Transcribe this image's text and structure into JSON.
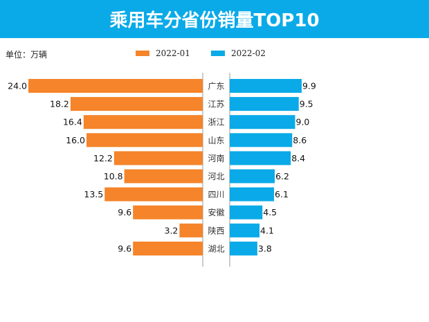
{
  "header": {
    "title": "乘用车分省份销量TOP10"
  },
  "unit_label": "单位：万辆",
  "colors": {
    "header_bg": "#0aaae8",
    "series1": "#f5842a",
    "series2": "#0aaae8",
    "axis": "#999999"
  },
  "chart_data": {
    "type": "bar",
    "orientation": "horizontal-butterfly",
    "title": "乘用车分省份销量TOP10",
    "unit": "单位：万辆",
    "legend_position": "top-center",
    "categories": [
      "广东",
      "江苏",
      "浙江",
      "山东",
      "河南",
      "河北",
      "四川",
      "安徽",
      "陕西",
      "湖北"
    ],
    "series": [
      {
        "name": "2022-01",
        "color": "#f5842a",
        "side": "left",
        "values": [
          24.0,
          18.2,
          16.4,
          16.0,
          12.2,
          10.8,
          13.5,
          9.6,
          3.2,
          9.6
        ],
        "labels": [
          "24.0",
          "18.2",
          "16.4",
          "16.0",
          "12.2",
          "10.8",
          "13.5",
          "9.6",
          "3.2",
          "9.6"
        ]
      },
      {
        "name": "2022-02",
        "color": "#0aaae8",
        "side": "right",
        "values": [
          9.9,
          9.5,
          9.0,
          8.6,
          8.4,
          6.2,
          6.1,
          4.5,
          4.1,
          3.8
        ],
        "labels": [
          "9.9",
          "9.5",
          "9.0",
          "8.6",
          "8.4",
          "6.2",
          "6.1",
          "4.5",
          "4.1",
          "3.8"
        ]
      }
    ],
    "grid": false
  }
}
